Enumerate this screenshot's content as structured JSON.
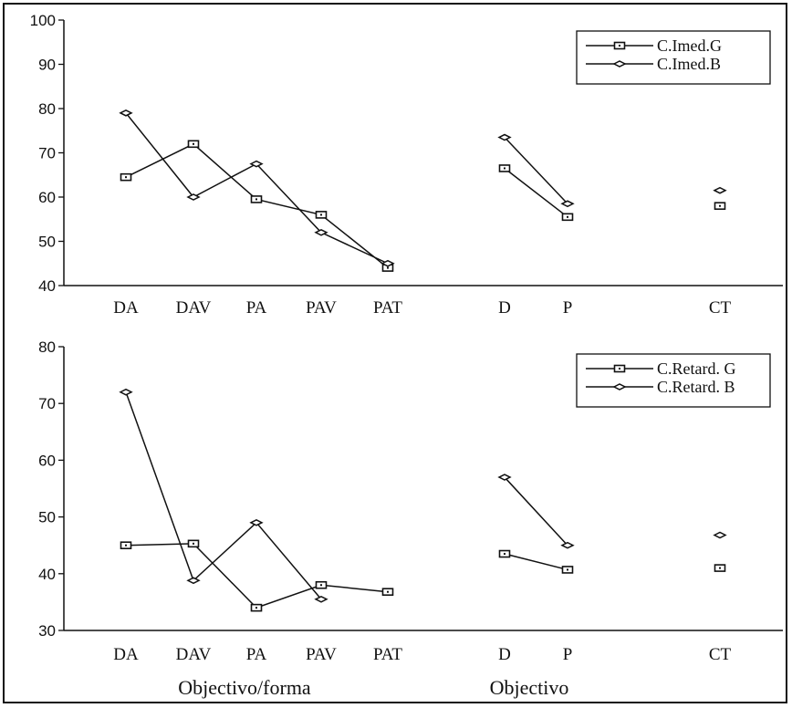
{
  "chart_data": [
    {
      "type": "line",
      "categories": [
        "DA",
        "DAV",
        "PA",
        "PAV",
        "PAT",
        "D",
        "P",
        "CT"
      ],
      "groups": [
        [
          "DA",
          "DAV",
          "PA",
          "PAV",
          "PAT"
        ],
        [
          "D",
          "P"
        ],
        [
          "CT"
        ]
      ],
      "ylim": [
        40,
        100
      ],
      "yticks": [
        40,
        50,
        60,
        70,
        80,
        90,
        100
      ],
      "series": [
        {
          "name": "C.Imed.G",
          "marker": "square",
          "values": [
            64.5,
            72,
            59.5,
            56,
            44,
            66.5,
            55.5,
            58
          ]
        },
        {
          "name": "C.Imed.B",
          "marker": "diamond",
          "values": [
            79,
            60,
            67.5,
            52,
            45,
            73.5,
            58.5,
            61.5
          ]
        }
      ],
      "legend_position": "top-right"
    },
    {
      "type": "line",
      "categories": [
        "DA",
        "DAV",
        "PA",
        "PAV",
        "PAT",
        "D",
        "P",
        "CT"
      ],
      "groups": [
        [
          "DA",
          "DAV",
          "PA",
          "PAV",
          "PAT"
        ],
        [
          "D",
          "P"
        ],
        [
          "CT"
        ]
      ],
      "ylim": [
        30,
        80
      ],
      "yticks": [
        30,
        40,
        50,
        60,
        70,
        80
      ],
      "series": [
        {
          "name": "C.Retard. G",
          "marker": "square",
          "values": [
            45,
            45.3,
            34,
            38,
            36.8,
            43.5,
            40.7,
            41
          ]
        },
        {
          "name": "C.Retard. B",
          "marker": "diamond",
          "values": [
            72,
            38.8,
            49,
            35.5,
            null,
            57,
            45,
            46.8
          ]
        }
      ],
      "legend_position": "top-right"
    }
  ],
  "x_group_titles": [
    "Objectivo/forma",
    "Objectivo"
  ]
}
